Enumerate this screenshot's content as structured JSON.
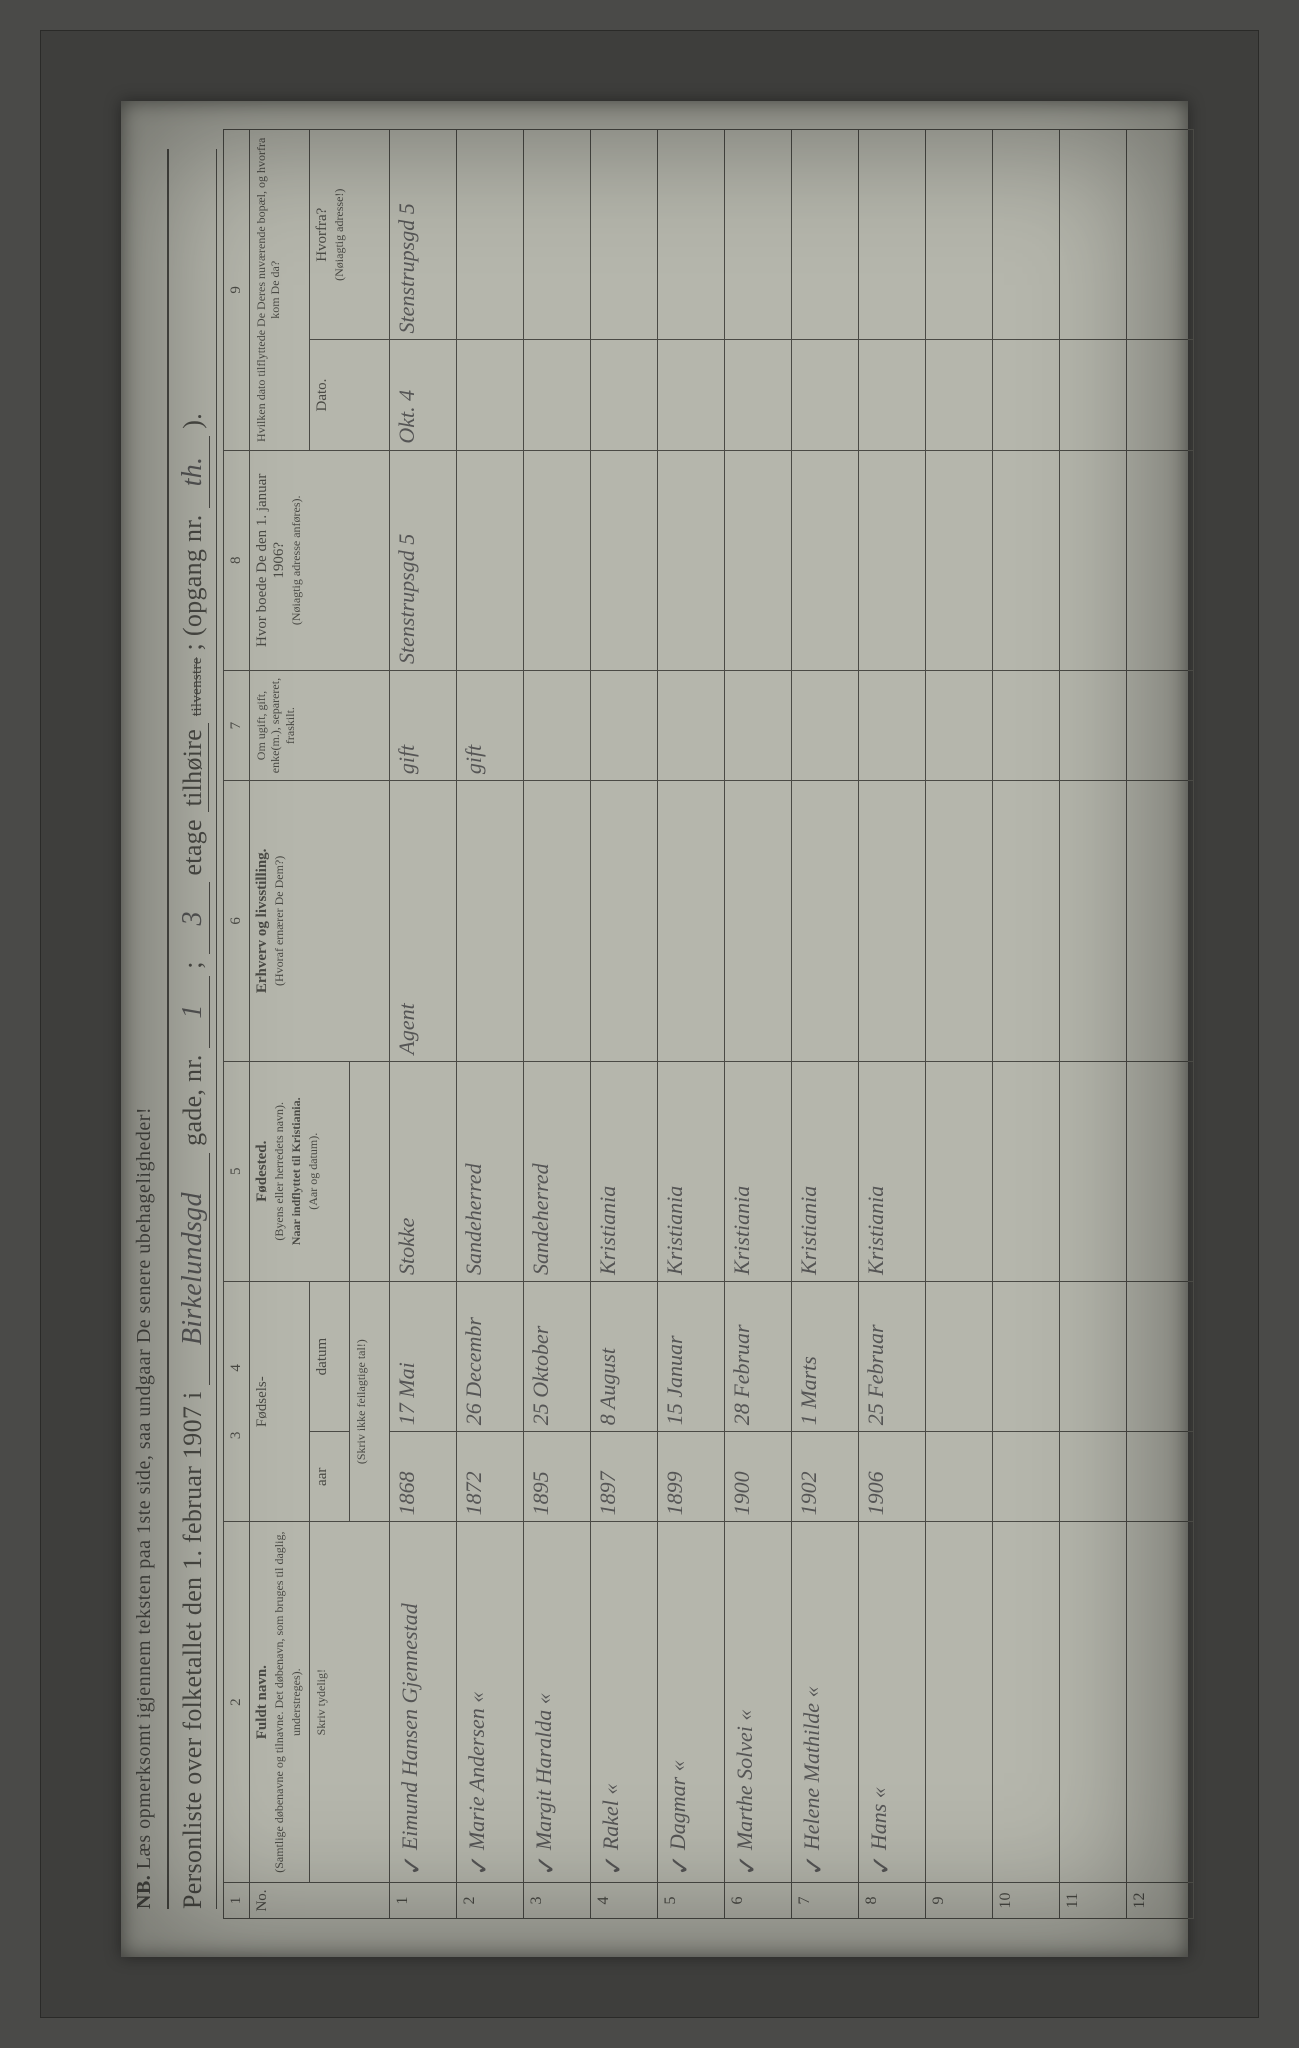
{
  "nb_label": "NB.",
  "nb_text": "Læs opmerksomt igjennem teksten paa 1ste side, saa undgaar De senere ubehageligheder!",
  "title": {
    "prefix": "Personliste over folketallet den 1. februar 1907 i",
    "street_hand": "Birkelundsgd",
    "gade": "gade, nr.",
    "nr_hand": "1",
    "semicolon": ";",
    "etage_hand": "3",
    "etage": "etage",
    "tilhoire": "tilhøire",
    "tilvenstre_struck": "tilvenstre",
    "opgang": "; (opgang nr.",
    "opgang_hand": "th.",
    "close": ")."
  },
  "colnums": [
    "1",
    "2",
    "3",
    "4",
    "5",
    "6",
    "7",
    "8",
    "9"
  ],
  "headers": {
    "no": "No.",
    "fuldt_navn": "Fuldt navn.",
    "fuldt_navn_sub": "(Samtlige døbenavne og tilnavne. Det døbenavn, som bruges til daglig, understreges).",
    "fodsels": "Fødsels-",
    "aar": "aar",
    "datum": "datum",
    "skriv_tal": "(Skriv ikke feilagtige tal!)",
    "fodested": "Fødested.",
    "fodested_sub1": "(Byens eller herredets navn).",
    "fodested_sub2": "Naar indflyttet til Kristiania.",
    "fodested_sub3": "(Aar og datum).",
    "erhverv": "Erhverv og livsstilling.",
    "erhverv_sub": "(Hvoraf ernærer De Dem?)",
    "ugift": "Om ugift, gift, enke(m.), separeret, fraskilt.",
    "hvor1906": "Hvor boede De den 1. januar 1906?",
    "hvor1906_sub": "(Nøiagtig adresse anføres).",
    "hvilken": "Hvilken dato tilflyttede De Deres nuværende bopæl, og hvorfra kom De da?",
    "dato": "Dato.",
    "hvorfra": "Hvorfra?",
    "hvorfra_sub": "(Nøiagtig adresse!)",
    "skriv_tydeligt": "Skriv tydelig!"
  },
  "rows": [
    {
      "n": "1",
      "name": "Eimund Hansen Gjennestad",
      "aar": "1868",
      "datum": "17 Mai",
      "fodested": "Stokke",
      "erhverv": "Agent",
      "ugift": "gift",
      "hvor1906": "Stenstrupsgd 5",
      "dato": "Okt. 4",
      "hvorfra": "Stenstrupsgd 5"
    },
    {
      "n": "2",
      "name": "Marie Andersen   «",
      "aar": "1872",
      "datum": "26 Decembr",
      "fodested": "Sandeherred",
      "erhverv": "",
      "ugift": "gift",
      "hvor1906": "",
      "dato": "",
      "hvorfra": ""
    },
    {
      "n": "3",
      "name": "Margit Haralda   «",
      "aar": "1895",
      "datum": "25 Oktober",
      "fodested": "Sandeherred",
      "erhverv": "",
      "ugift": "",
      "hvor1906": "",
      "dato": "",
      "hvorfra": ""
    },
    {
      "n": "4",
      "name": "Rakel   «",
      "aar": "1897",
      "datum": "8 August",
      "fodested": "Kristiania",
      "erhverv": "",
      "ugift": "",
      "hvor1906": "",
      "dato": "",
      "hvorfra": ""
    },
    {
      "n": "5",
      "name": "Dagmar   «",
      "aar": "1899",
      "datum": "15 Januar",
      "fodested": "Kristiania",
      "erhverv": "",
      "ugift": "",
      "hvor1906": "",
      "dato": "",
      "hvorfra": ""
    },
    {
      "n": "6",
      "name": "Marthe Solvei   «",
      "aar": "1900",
      "datum": "28 Februar",
      "fodested": "Kristiania",
      "erhverv": "",
      "ugift": "",
      "hvor1906": "",
      "dato": "",
      "hvorfra": ""
    },
    {
      "n": "7",
      "name": "Helene Mathilde   «",
      "aar": "1902",
      "datum": "1 Marts",
      "fodested": "Kristiania",
      "erhverv": "",
      "ugift": "",
      "hvor1906": "",
      "dato": "",
      "hvorfra": ""
    },
    {
      "n": "8",
      "name": "Hans   «",
      "aar": "1906",
      "datum": "25 Februar",
      "fodested": "Kristiania",
      "erhverv": "",
      "ugift": "",
      "hvor1906": "",
      "dato": "",
      "hvorfra": ""
    },
    {
      "n": "9",
      "name": "",
      "aar": "",
      "datum": "",
      "fodested": "",
      "erhverv": "",
      "ugift": "",
      "hvor1906": "",
      "dato": "",
      "hvorfra": ""
    },
    {
      "n": "10",
      "name": "",
      "aar": "",
      "datum": "",
      "fodested": "",
      "erhverv": "",
      "ugift": "",
      "hvor1906": "",
      "dato": "",
      "hvorfra": ""
    },
    {
      "n": "11",
      "name": "",
      "aar": "",
      "datum": "",
      "fodested": "",
      "erhverv": "",
      "ugift": "",
      "hvor1906": "",
      "dato": "",
      "hvorfra": ""
    },
    {
      "n": "12",
      "name": "",
      "aar": "",
      "datum": "",
      "fodested": "",
      "erhverv": "",
      "ugift": "",
      "hvor1906": "",
      "dato": "",
      "hvorfra": ""
    }
  ],
  "style": {
    "paper_bg": "#b5b6ac",
    "ink": "#4a4a45",
    "hand_ink": "#555",
    "frame_bg": "#4a4a48"
  }
}
